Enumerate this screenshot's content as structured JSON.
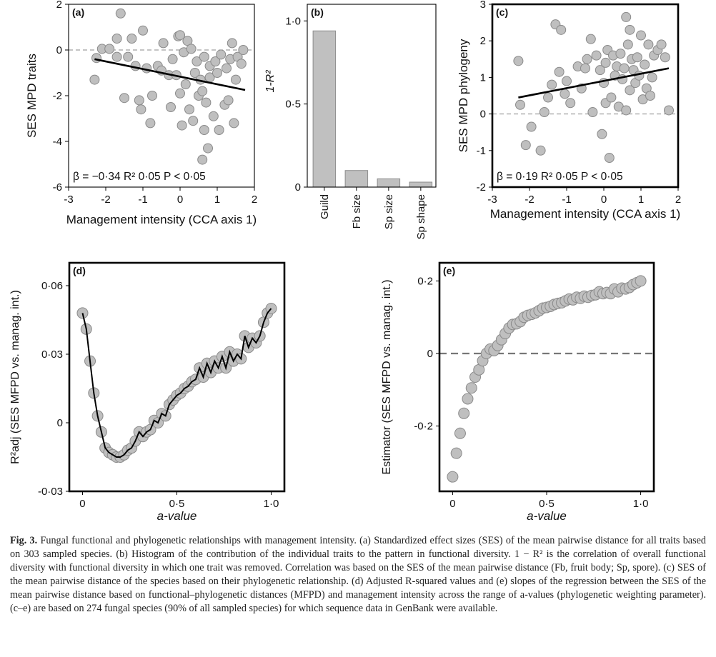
{
  "chart_data": [
    {
      "panel": "(a)",
      "type": "scatter",
      "xlabel": "Management intensity (CCA axis 1)",
      "ylabel": "SES MPD traits",
      "xlim": [
        -3,
        2
      ],
      "ylim": [
        -6,
        2
      ],
      "xticks": [
        "-3",
        "-2",
        "-1",
        "0",
        "1",
        "2"
      ],
      "yticks": [
        "-6",
        "-4",
        "-2",
        "0",
        "2"
      ],
      "reference_line_y": 0,
      "annotation": "β = −0·34  R² 0·05  P < 0·05",
      "regression": {
        "x": [
          -2.3,
          1.75
        ],
        "y": [
          -0.4,
          -1.75
        ]
      },
      "points": [
        [
          -2.3,
          -1.3
        ],
        [
          -2.25,
          -0.35
        ],
        [
          -2.1,
          0.05
        ],
        [
          -1.9,
          0.05
        ],
        [
          -1.7,
          -0.3
        ],
        [
          -1.7,
          0.5
        ],
        [
          -1.6,
          1.6
        ],
        [
          -1.5,
          -2.1
        ],
        [
          -1.4,
          -0.3
        ],
        [
          -1.3,
          0.5
        ],
        [
          -1.2,
          -0.7
        ],
        [
          -1.1,
          -2.2
        ],
        [
          -1.05,
          -2.6
        ],
        [
          -1.0,
          0.85
        ],
        [
          -0.9,
          -0.8
        ],
        [
          -0.8,
          -3.2
        ],
        [
          -0.75,
          -2.0
        ],
        [
          -0.6,
          -0.7
        ],
        [
          -0.5,
          -0.9
        ],
        [
          -0.45,
          0.3
        ],
        [
          -0.3,
          -1.1
        ],
        [
          -0.25,
          -2.5
        ],
        [
          -0.2,
          -0.4
        ],
        [
          -0.1,
          -1.1
        ],
        [
          -0.05,
          0.6
        ],
        [
          0.0,
          -1.9
        ],
        [
          0.0,
          0.65
        ],
        [
          0.05,
          -3.3
        ],
        [
          0.1,
          -0.1
        ],
        [
          0.15,
          -1.5
        ],
        [
          0.2,
          0.4
        ],
        [
          0.25,
          -2.6
        ],
        [
          0.3,
          0.05
        ],
        [
          0.35,
          -3.1
        ],
        [
          0.4,
          -1.0
        ],
        [
          0.45,
          -0.5
        ],
        [
          0.5,
          -2.0
        ],
        [
          0.55,
          -1.3
        ],
        [
          0.6,
          -4.8
        ],
        [
          0.6,
          -1.8
        ],
        [
          0.65,
          -3.5
        ],
        [
          0.65,
          -0.3
        ],
        [
          0.7,
          -2.3
        ],
        [
          0.75,
          -4.3
        ],
        [
          0.8,
          -1.2
        ],
        [
          0.8,
          -0.7
        ],
        [
          0.9,
          -2.9
        ],
        [
          0.95,
          -0.5
        ],
        [
          1.0,
          -1.0
        ],
        [
          1.05,
          -3.5
        ],
        [
          1.1,
          -0.2
        ],
        [
          1.2,
          -2.4
        ],
        [
          1.25,
          -0.8
        ],
        [
          1.3,
          -2.2
        ],
        [
          1.35,
          -0.4
        ],
        [
          1.4,
          0.3
        ],
        [
          1.45,
          -3.2
        ],
        [
          1.5,
          -1.3
        ],
        [
          1.55,
          -0.3
        ],
        [
          1.65,
          -0.6
        ],
        [
          1.7,
          0.0
        ]
      ]
    },
    {
      "panel": "(b)",
      "type": "bar",
      "ylabel": "1-R²",
      "categories": [
        "Guild",
        "Fb size",
        "Sp size",
        "Sp shape"
      ],
      "values": [
        0.94,
        0.1,
        0.05,
        0.03
      ],
      "ylim": [
        0,
        1.1
      ],
      "yticks": [
        "0",
        "0·5",
        "1·0"
      ]
    },
    {
      "panel": "(c)",
      "type": "scatter",
      "xlabel": "Management intensity (CCA axis 1)",
      "ylabel": "SES MPD phylogeny",
      "xlim": [
        -3,
        2
      ],
      "ylim": [
        -2,
        3
      ],
      "xticks": [
        "-3",
        "-2",
        "-1",
        "0",
        "1",
        "2"
      ],
      "yticks": [
        "-2",
        "-1",
        "0",
        "1",
        "2",
        "3"
      ],
      "reference_line_y": 0,
      "annotation": "β = 0·19  R² 0·05  P < 0·05",
      "regression": {
        "x": [
          -2.3,
          1.75
        ],
        "y": [
          0.45,
          1.25
        ]
      },
      "points": [
        [
          -2.3,
          1.45
        ],
        [
          -2.25,
          0.25
        ],
        [
          -2.1,
          -0.85
        ],
        [
          -1.95,
          -0.35
        ],
        [
          -1.7,
          -1.0
        ],
        [
          -1.6,
          0.05
        ],
        [
          -1.5,
          0.45
        ],
        [
          -1.4,
          0.8
        ],
        [
          -1.3,
          2.45
        ],
        [
          -1.2,
          1.15
        ],
        [
          -1.15,
          2.3
        ],
        [
          -1.05,
          0.55
        ],
        [
          -1.0,
          0.9
        ],
        [
          -0.9,
          0.3
        ],
        [
          -0.7,
          1.3
        ],
        [
          -0.6,
          0.7
        ],
        [
          -0.5,
          1.25
        ],
        [
          -0.45,
          1.5
        ],
        [
          -0.35,
          2.05
        ],
        [
          -0.3,
          0.05
        ],
        [
          -0.2,
          1.6
        ],
        [
          -0.1,
          1.2
        ],
        [
          -0.05,
          -0.55
        ],
        [
          0.0,
          0.85
        ],
        [
          0.05,
          0.3
        ],
        [
          0.05,
          1.4
        ],
        [
          0.1,
          1.75
        ],
        [
          0.15,
          -1.2
        ],
        [
          0.2,
          0.45
        ],
        [
          0.25,
          1.6
        ],
        [
          0.3,
          1.05
        ],
        [
          0.35,
          1.3
        ],
        [
          0.4,
          0.2
        ],
        [
          0.45,
          1.65
        ],
        [
          0.5,
          0.95
        ],
        [
          0.55,
          1.25
        ],
        [
          0.6,
          2.65
        ],
        [
          0.6,
          0.1
        ],
        [
          0.65,
          1.9
        ],
        [
          0.7,
          0.65
        ],
        [
          0.7,
          2.3
        ],
        [
          0.75,
          1.5
        ],
        [
          0.8,
          1.2
        ],
        [
          0.85,
          0.85
        ],
        [
          0.9,
          1.55
        ],
        [
          0.95,
          1.05
        ],
        [
          1.0,
          2.15
        ],
        [
          1.05,
          0.4
        ],
        [
          1.1,
          1.35
        ],
        [
          1.15,
          0.7
        ],
        [
          1.2,
          1.9
        ],
        [
          1.25,
          0.5
        ],
        [
          1.3,
          1.0
        ],
        [
          1.35,
          1.6
        ],
        [
          1.45,
          1.75
        ],
        [
          1.55,
          1.9
        ],
        [
          1.65,
          1.55
        ],
        [
          1.75,
          0.1
        ]
      ]
    },
    {
      "panel": "(d)",
      "type": "line",
      "xlabel": "a-value",
      "ylabel": "R²adj (SES MFPD vs. manag. int.)",
      "xlim": [
        -0.07,
        1.07
      ],
      "ylim": [
        -0.03,
        0.07
      ],
      "xticks": [
        "0",
        "0·5",
        "1·0"
      ],
      "yticks": [
        "-0·03",
        "0",
        "0·03",
        "0·06"
      ],
      "x": [
        0,
        0.02,
        0.04,
        0.06,
        0.08,
        0.1,
        0.12,
        0.14,
        0.16,
        0.18,
        0.2,
        0.22,
        0.24,
        0.26,
        0.28,
        0.3,
        0.32,
        0.34,
        0.36,
        0.38,
        0.4,
        0.42,
        0.44,
        0.46,
        0.48,
        0.5,
        0.52,
        0.54,
        0.56,
        0.58,
        0.6,
        0.62,
        0.64,
        0.66,
        0.68,
        0.7,
        0.72,
        0.74,
        0.76,
        0.78,
        0.8,
        0.82,
        0.84,
        0.86,
        0.88,
        0.9,
        0.92,
        0.94,
        0.96,
        0.98,
        1.0
      ],
      "y": [
        0.048,
        0.041,
        0.027,
        0.013,
        0.003,
        -0.004,
        -0.011,
        -0.013,
        -0.014,
        -0.015,
        -0.015,
        -0.014,
        -0.012,
        -0.011,
        -0.008,
        -0.004,
        -0.006,
        -0.004,
        -0.003,
        0.001,
        0.0,
        0.004,
        0.003,
        0.008,
        0.01,
        0.012,
        0.013,
        0.015,
        0.016,
        0.018,
        0.019,
        0.024,
        0.02,
        0.026,
        0.022,
        0.027,
        0.024,
        0.029,
        0.024,
        0.031,
        0.027,
        0.03,
        0.028,
        0.038,
        0.033,
        0.037,
        0.035,
        0.038,
        0.044,
        0.048,
        0.05
      ]
    },
    {
      "panel": "(e)",
      "type": "scatter",
      "xlabel": "a-value",
      "ylabel": "Estimator (SES MFPD vs. manag. int.)",
      "xlim": [
        -0.07,
        1.07
      ],
      "ylim": [
        -0.38,
        0.25
      ],
      "xticks": [
        "0",
        "0·5",
        "1·0"
      ],
      "yticks": [
        "-0·2",
        "0",
        "0·2"
      ],
      "reference_line_y": 0,
      "x": [
        0,
        0.02,
        0.04,
        0.06,
        0.08,
        0.1,
        0.12,
        0.14,
        0.16,
        0.18,
        0.2,
        0.22,
        0.24,
        0.26,
        0.28,
        0.3,
        0.32,
        0.34,
        0.36,
        0.38,
        0.4,
        0.42,
        0.44,
        0.46,
        0.48,
        0.5,
        0.52,
        0.54,
        0.56,
        0.58,
        0.6,
        0.62,
        0.64,
        0.66,
        0.68,
        0.7,
        0.72,
        0.74,
        0.76,
        0.78,
        0.8,
        0.82,
        0.84,
        0.86,
        0.88,
        0.9,
        0.92,
        0.94,
        0.96,
        0.98,
        1.0
      ],
      "y": [
        -0.34,
        -0.275,
        -0.22,
        -0.165,
        -0.125,
        -0.095,
        -0.065,
        -0.045,
        -0.02,
        0.0,
        0.012,
        0.008,
        0.022,
        0.038,
        0.055,
        0.07,
        0.08,
        0.082,
        0.088,
        0.1,
        0.105,
        0.108,
        0.112,
        0.118,
        0.125,
        0.127,
        0.13,
        0.135,
        0.138,
        0.14,
        0.145,
        0.15,
        0.148,
        0.155,
        0.152,
        0.158,
        0.155,
        0.16,
        0.162,
        0.17,
        0.165,
        0.168,
        0.165,
        0.178,
        0.17,
        0.18,
        0.178,
        0.182,
        0.19,
        0.195,
        0.2
      ]
    }
  ],
  "caption": {
    "lead": "Fig. 3.",
    "text": "Fungal functional and phylogenetic relationships with management intensity. (a) Standardized effect sizes (SES) of the mean pairwise distance for all traits based on 303 sampled species. (b) Histogram of the contribution of the individual traits to the pattern in functional diversity. 1 − R² is the correlation of overall functional diversity with functional diversity in which one trait was removed. Correlation was based on the SES of the mean pairwise distance (Fb, fruit body; Sp, spore). (c) SES of the mean pairwise distance of the species based on their phylogenetic relationship. (d) Adjusted R-squared values and (e) slopes of the regression between the SES of the mean pairwise distance based on functional–phylogenetic distances (MFPD) and management intensity across the range of a-values (phylogenetic weighting parameter). (c–e) are based on 274 fungal species (90% of all sampled species) for which sequence data in GenBank were available."
  }
}
